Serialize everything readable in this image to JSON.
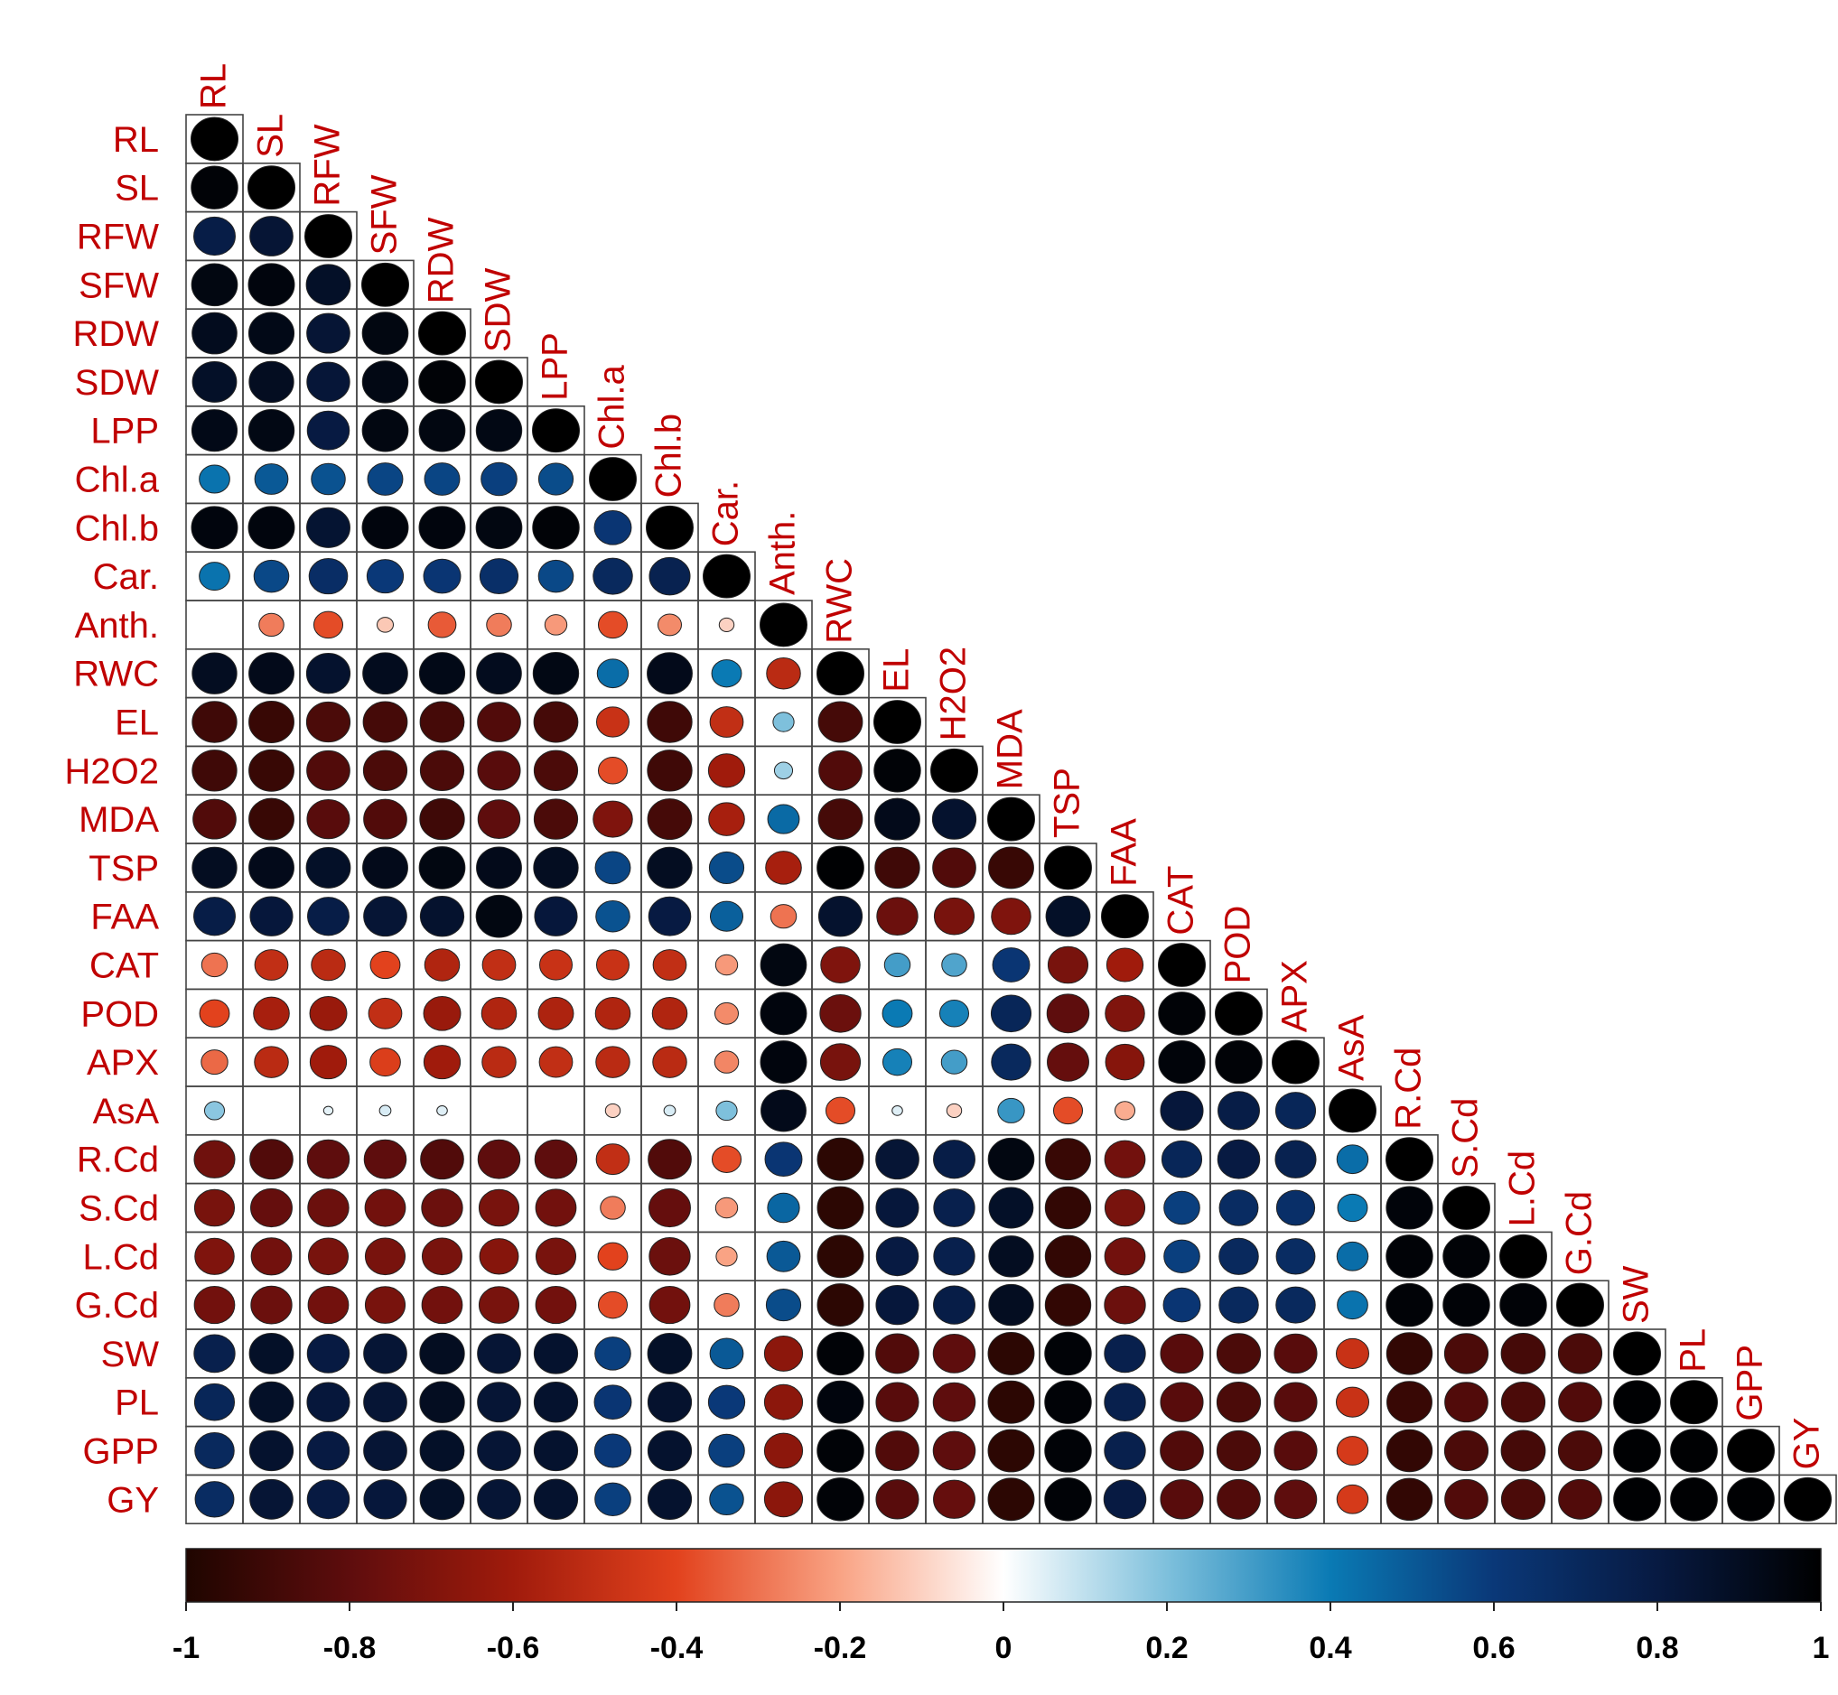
{
  "chart_data": {
    "type": "heatmap",
    "variables": [
      "RL",
      "SL",
      "RFW",
      "SFW",
      "RDW",
      "SDW",
      "LPP",
      "Chl.a",
      "Chl.b",
      "Car.",
      "Anth.",
      "RWC",
      "EL",
      "H2O2",
      "MDA",
      "TSP",
      "FAA",
      "CAT",
      "POD",
      "APX",
      "AsA",
      "R.Cd",
      "S.Cd",
      "L.Cd",
      "G.Cd",
      "SW",
      "PL",
      "GPP",
      "GY"
    ],
    "matrix_lower": [
      [
        1.0
      ],
      [
        0.98,
        1.0
      ],
      [
        0.78,
        0.84,
        1.0
      ],
      [
        0.95,
        0.96,
        0.88,
        1.0
      ],
      [
        0.91,
        0.93,
        0.84,
        0.95,
        1.0
      ],
      [
        0.88,
        0.9,
        0.83,
        0.94,
        0.98,
        1.0
      ],
      [
        0.93,
        0.94,
        0.8,
        0.95,
        0.95,
        0.94,
        1.0
      ],
      [
        0.42,
        0.5,
        0.52,
        0.56,
        0.56,
        0.58,
        0.54,
        1.0
      ],
      [
        0.96,
        0.96,
        0.85,
        0.96,
        0.96,
        0.95,
        0.98,
        0.62,
        1.0
      ],
      [
        0.42,
        0.55,
        0.67,
        0.6,
        0.62,
        0.66,
        0.55,
        0.7,
        0.75,
        1.0
      ],
      [
        0.0,
        -0.28,
        -0.38,
        -0.12,
        -0.35,
        -0.28,
        -0.22,
        -0.38,
        -0.25,
        -0.1,
        1.0
      ],
      [
        0.9,
        0.92,
        0.86,
        0.91,
        0.93,
        0.91,
        0.94,
        0.44,
        0.92,
        0.4,
        -0.52,
        1.0
      ],
      [
        -0.9,
        -0.92,
        -0.86,
        -0.88,
        -0.88,
        -0.84,
        -0.88,
        -0.48,
        -0.9,
        -0.5,
        0.2,
        -0.88,
        1.0
      ],
      [
        -0.9,
        -0.92,
        -0.84,
        -0.86,
        -0.86,
        -0.82,
        -0.86,
        -0.38,
        -0.9,
        -0.6,
        0.15,
        -0.84,
        0.98,
        1.0
      ],
      [
        -0.84,
        -0.92,
        -0.82,
        -0.84,
        -0.9,
        -0.8,
        -0.86,
        -0.7,
        -0.88,
        -0.58,
        0.45,
        -0.88,
        0.92,
        0.86,
        1.0
      ],
      [
        0.9,
        0.92,
        0.88,
        0.92,
        0.95,
        0.92,
        0.9,
        0.56,
        0.9,
        0.54,
        -0.58,
        0.99,
        -0.9,
        -0.84,
        -0.92,
        1.0
      ],
      [
        0.78,
        0.82,
        0.78,
        0.84,
        0.86,
        0.95,
        0.82,
        0.52,
        0.8,
        0.48,
        -0.3,
        0.86,
        -0.76,
        -0.72,
        -0.7,
        0.88,
        1.0
      ],
      [
        -0.3,
        -0.5,
        -0.52,
        -0.4,
        -0.55,
        -0.5,
        -0.48,
        -0.48,
        -0.5,
        -0.22,
        0.95,
        -0.7,
        0.3,
        0.28,
        0.62,
        -0.72,
        -0.6,
        1.0
      ],
      [
        -0.4,
        -0.58,
        -0.62,
        -0.5,
        -0.62,
        -0.55,
        -0.56,
        -0.55,
        -0.55,
        -0.25,
        0.96,
        -0.76,
        0.4,
        0.38,
        0.72,
        -0.8,
        -0.7,
        0.98,
        1.0
      ],
      [
        -0.32,
        -0.52,
        -0.6,
        -0.42,
        -0.6,
        -0.52,
        -0.5,
        -0.52,
        -0.52,
        -0.26,
        0.96,
        -0.72,
        0.38,
        0.3,
        0.7,
        -0.78,
        -0.68,
        0.97,
        0.98,
        1.0
      ],
      [
        0.18,
        0.0,
        0.04,
        0.06,
        0.05,
        0.0,
        0.0,
        -0.1,
        0.06,
        0.2,
        0.92,
        -0.38,
        0.05,
        -0.1,
        0.32,
        -0.38,
        -0.18,
        0.82,
        0.78,
        0.72,
        1.0
      ],
      [
        -0.75,
        -0.84,
        -0.8,
        -0.8,
        -0.84,
        -0.8,
        -0.8,
        -0.5,
        -0.84,
        -0.38,
        0.62,
        -0.96,
        0.84,
        0.78,
        0.95,
        -0.92,
        -0.74,
        0.72,
        0.8,
        0.75,
        0.44,
        1.0
      ],
      [
        -0.72,
        -0.78,
        -0.76,
        -0.74,
        -0.76,
        -0.72,
        -0.74,
        -0.28,
        -0.78,
        -0.22,
        0.46,
        -0.96,
        0.82,
        0.76,
        0.88,
        -0.94,
        -0.72,
        0.58,
        0.68,
        0.66,
        0.4,
        0.97,
        1.0
      ],
      [
        -0.7,
        -0.74,
        -0.72,
        -0.72,
        -0.72,
        -0.68,
        -0.72,
        -0.4,
        -0.76,
        -0.2,
        0.5,
        -0.96,
        0.8,
        0.76,
        0.9,
        -0.94,
        -0.74,
        0.58,
        0.7,
        0.68,
        0.44,
        0.98,
        0.98,
        1.0
      ],
      [
        -0.74,
        -0.76,
        -0.74,
        -0.72,
        -0.74,
        -0.72,
        -0.74,
        -0.38,
        -0.74,
        -0.28,
        0.54,
        -0.96,
        0.82,
        0.78,
        0.9,
        -0.94,
        -0.76,
        0.62,
        0.7,
        0.7,
        0.42,
        0.98,
        0.98,
        0.98,
        1.0
      ],
      [
        0.76,
        0.88,
        0.8,
        0.84,
        0.9,
        0.84,
        0.86,
        0.58,
        0.88,
        0.5,
        -0.66,
        0.98,
        -0.84,
        -0.8,
        -0.96,
        0.98,
        0.76,
        -0.82,
        -0.86,
        -0.82,
        -0.48,
        -0.94,
        -0.86,
        -0.88,
        -0.86,
        1.0
      ],
      [
        0.72,
        0.88,
        0.82,
        0.84,
        0.9,
        0.84,
        0.86,
        0.62,
        0.86,
        0.6,
        -0.66,
        0.96,
        -0.82,
        -0.8,
        -0.96,
        0.98,
        0.76,
        -0.82,
        -0.86,
        -0.82,
        -0.48,
        -0.92,
        -0.84,
        -0.86,
        -0.84,
        0.99,
        1.0
      ],
      [
        0.7,
        0.86,
        0.8,
        0.84,
        0.88,
        0.84,
        0.86,
        0.6,
        0.86,
        0.58,
        -0.66,
        0.98,
        -0.84,
        -0.8,
        -0.96,
        0.98,
        0.76,
        -0.84,
        -0.86,
        -0.82,
        -0.44,
        -0.94,
        -0.86,
        -0.88,
        -0.86,
        0.99,
        0.99,
        1.0
      ],
      [
        0.68,
        0.84,
        0.8,
        0.82,
        0.88,
        0.84,
        0.86,
        0.58,
        0.86,
        0.52,
        -0.66,
        0.98,
        -0.82,
        -0.78,
        -0.96,
        0.98,
        0.8,
        -0.82,
        -0.84,
        -0.8,
        -0.44,
        -0.94,
        -0.84,
        -0.86,
        -0.84,
        0.99,
        0.99,
        0.99,
        1.0
      ]
    ],
    "legend": {
      "ticks": [
        "-1",
        "-0.8",
        "-0.6",
        "-0.4",
        "-0.2",
        "0",
        "0.2",
        "0.4",
        "0.6",
        "0.8",
        "1"
      ],
      "range": [
        -1,
        1
      ],
      "placement": "bottom",
      "colors": [
        {
          "v": -1.0,
          "c": "#1f0500"
        },
        {
          "v": -0.8,
          "c": "#5e0d0d"
        },
        {
          "v": -0.6,
          "c": "#a01b0c"
        },
        {
          "v": -0.4,
          "c": "#e2421d"
        },
        {
          "v": -0.2,
          "c": "#f9a384"
        },
        {
          "v": 0.0,
          "c": "#ffffff"
        },
        {
          "v": 0.2,
          "c": "#7ec0dc"
        },
        {
          "v": 0.4,
          "c": "#0a7ab4"
        },
        {
          "v": 0.6,
          "c": "#0a3878"
        },
        {
          "v": 0.8,
          "c": "#071a42"
        },
        {
          "v": 1.0,
          "c": "#000000"
        }
      ]
    },
    "label_color": "#c00000"
  }
}
